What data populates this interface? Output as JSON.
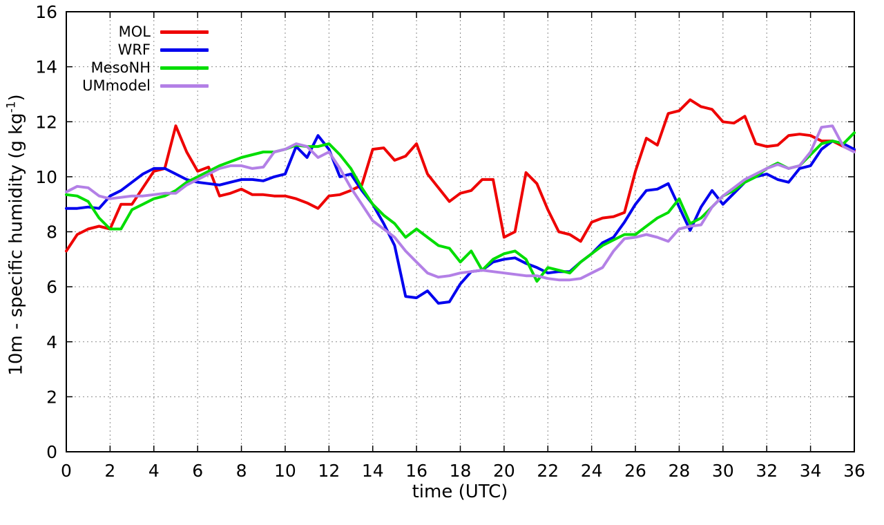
{
  "chart_data": {
    "type": "line",
    "title": "",
    "xlabel": "time (UTC)",
    "ylabel_prefix": "10m - specific humidity (g kg",
    "ylabel_sup": "-1",
    "ylabel_suffix": ")",
    "xlim": [
      0,
      36
    ],
    "ylim": [
      0,
      16
    ],
    "xticks": [
      0,
      2,
      4,
      6,
      8,
      10,
      12,
      14,
      16,
      18,
      20,
      22,
      24,
      26,
      28,
      30,
      32,
      34,
      36
    ],
    "yticks": [
      0,
      2,
      4,
      6,
      8,
      10,
      12,
      14,
      16
    ],
    "grid": true,
    "grid_color": "#8a8a8a",
    "legend_position": "top-left",
    "x_start": 0,
    "x_step": 0.5,
    "series": [
      {
        "name": "MOL",
        "color": "#ee0000",
        "values": [
          7.3,
          7.9,
          8.1,
          8.2,
          8.1,
          9.0,
          9.0,
          9.6,
          10.2,
          10.3,
          11.85,
          10.9,
          10.2,
          10.35,
          9.3,
          9.4,
          9.55,
          9.35,
          9.35,
          9.3,
          9.3,
          9.2,
          9.05,
          8.85,
          9.3,
          9.35,
          9.5,
          9.7,
          11.0,
          11.05,
          10.6,
          10.75,
          11.2,
          10.1,
          9.6,
          9.1,
          9.4,
          9.5,
          9.9,
          9.9,
          7.8,
          8.0,
          10.15,
          9.75,
          8.8,
          8.0,
          7.9,
          7.65,
          8.35,
          8.5,
          8.55,
          8.7,
          10.2,
          11.4,
          11.15,
          12.3,
          12.4,
          12.8,
          12.55,
          12.45,
          12.0,
          11.95,
          12.2,
          11.2,
          11.1,
          11.15,
          11.5,
          11.55,
          11.5,
          11.3,
          11.3,
          11.1,
          10.95
        ]
      },
      {
        "name": "WRF",
        "color": "#0000ee",
        "values": [
          8.85,
          8.85,
          8.9,
          8.85,
          9.3,
          9.5,
          9.8,
          10.1,
          10.3,
          10.3,
          10.1,
          9.9,
          9.8,
          9.75,
          9.7,
          9.8,
          9.9,
          9.9,
          9.85,
          10.0,
          10.1,
          11.1,
          10.7,
          11.5,
          11.0,
          10.0,
          10.1,
          9.5,
          9.0,
          8.3,
          7.5,
          5.65,
          5.6,
          5.85,
          5.4,
          5.45,
          6.1,
          6.55,
          6.6,
          6.9,
          7.0,
          7.05,
          6.85,
          6.7,
          6.5,
          6.55,
          6.55,
          6.9,
          7.2,
          7.6,
          7.8,
          8.35,
          9.0,
          9.5,
          9.55,
          9.75,
          8.9,
          8.05,
          8.9,
          9.5,
          9.0,
          9.4,
          9.8,
          10.0,
          10.1,
          9.9,
          9.8,
          10.3,
          10.4,
          11.0,
          11.3,
          11.2,
          11.0
        ]
      },
      {
        "name": "MesoNH",
        "color": "#00dd00",
        "values": [
          9.35,
          9.3,
          9.1,
          8.5,
          8.1,
          8.1,
          8.8,
          9.0,
          9.2,
          9.3,
          9.5,
          9.8,
          10.0,
          10.2,
          10.4,
          10.55,
          10.7,
          10.8,
          10.9,
          10.9,
          11.0,
          11.15,
          11.1,
          11.1,
          11.2,
          10.8,
          10.3,
          9.6,
          9.0,
          8.6,
          8.3,
          7.8,
          8.1,
          7.8,
          7.5,
          7.4,
          6.9,
          7.3,
          6.6,
          7.0,
          7.2,
          7.3,
          7.0,
          6.2,
          6.7,
          6.6,
          6.5,
          6.9,
          7.2,
          7.5,
          7.7,
          7.9,
          7.9,
          8.2,
          8.5,
          8.7,
          9.2,
          8.3,
          8.5,
          8.9,
          9.3,
          9.5,
          9.8,
          10.0,
          10.3,
          10.5,
          10.3,
          10.4,
          10.8,
          11.2,
          11.3,
          11.2,
          11.6
        ]
      },
      {
        "name": "UMmodel",
        "color": "#b380e6",
        "values": [
          9.45,
          9.65,
          9.6,
          9.3,
          9.2,
          9.25,
          9.3,
          9.3,
          9.35,
          9.4,
          9.4,
          9.7,
          9.9,
          10.1,
          10.3,
          10.4,
          10.4,
          10.3,
          10.35,
          10.9,
          11.0,
          11.2,
          11.1,
          10.7,
          10.9,
          10.3,
          9.6,
          9.0,
          8.4,
          8.1,
          7.8,
          7.3,
          6.9,
          6.5,
          6.35,
          6.4,
          6.5,
          6.55,
          6.6,
          6.55,
          6.5,
          6.45,
          6.4,
          6.4,
          6.3,
          6.25,
          6.25,
          6.3,
          6.5,
          6.7,
          7.3,
          7.75,
          7.8,
          7.9,
          7.8,
          7.65,
          8.1,
          8.2,
          8.25,
          8.9,
          9.3,
          9.6,
          9.9,
          10.1,
          10.3,
          10.45,
          10.3,
          10.4,
          10.9,
          11.8,
          11.85,
          11.1,
          10.9
        ]
      }
    ]
  }
}
